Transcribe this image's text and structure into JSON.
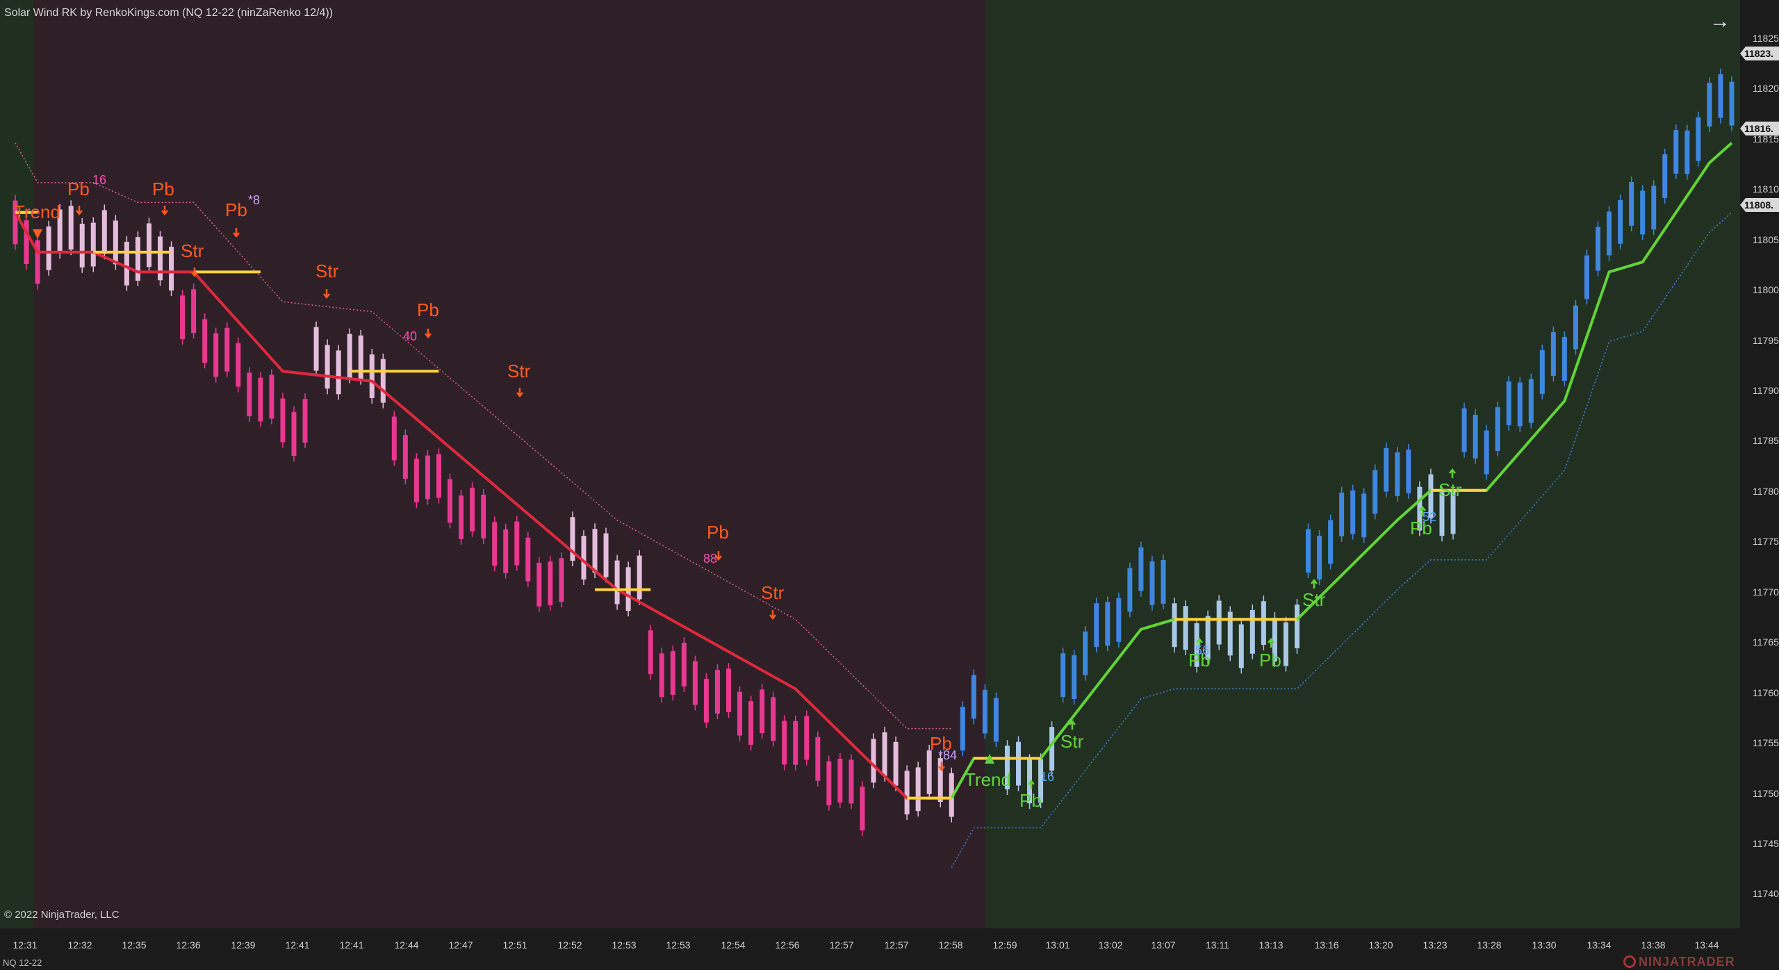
{
  "window": {
    "title": "Solar Wind RK by RenkoKings.com (NQ 12-22 (ninZaRenko 12/4))",
    "copyright": "© 2022 NinjaTrader, LLC",
    "instrument": "NQ 12-22",
    "brand": "NINJATRADER"
  },
  "icons": {
    "scroll": "arrow-right-icon",
    "brand": "ninjatrader-logo-icon"
  },
  "colors": {
    "bear_zone": "#2f2028",
    "bull_zone": "#223022",
    "bear_line": "#e0283c",
    "bull_line": "#62d438",
    "flat_line": "#ffd23a",
    "bear_bar": "#e8388f",
    "bear_pullback_bar": "#e3bddb",
    "bull_bar": "#3f86e0",
    "bull_pullback_bar": "#a9c9e6",
    "signal_bear": "#ff5a1f",
    "signal_bull": "#5fd33a"
  },
  "chart_data": {
    "type": "candlestick",
    "title": "",
    "y_axis": {
      "ticks": [
        "11825",
        "11820",
        "11815",
        "11810",
        "11805",
        "11800",
        "11795",
        "11790",
        "11785",
        "11780",
        "11775",
        "11770",
        "11765",
        "11760",
        "11755",
        "11750",
        "11745",
        "11740"
      ],
      "range": [
        11738,
        11829
      ]
    },
    "x_axis": {
      "ticks": [
        "12:31",
        "12:32",
        "12:35",
        "12:36",
        "12:39",
        "12:41",
        "12:41",
        "12:44",
        "12:47",
        "12:51",
        "12:52",
        "12:53",
        "12:53",
        "12:54",
        "12:56",
        "12:57",
        "12:57",
        "12:58",
        "12:59",
        "13:01",
        "13:02",
        "13:07",
        "13:11",
        "13:13",
        "13:16",
        "13:20",
        "13:23",
        "13:28",
        "13:30",
        "13:34",
        "13:38",
        "13:44"
      ]
    },
    "price_markers": [
      "11823.",
      "11816.",
      "11808."
    ],
    "bear_trail": [
      [
        0,
        11809
      ],
      [
        2,
        11805
      ],
      [
        7,
        11805
      ],
      [
        11,
        11803
      ],
      [
        16,
        11803
      ],
      [
        24,
        11793
      ],
      [
        32,
        11792
      ],
      [
        54,
        11771
      ],
      [
        70,
        11761
      ],
      [
        80,
        11750
      ],
      [
        84,
        11750
      ]
    ],
    "bull_trail": [
      [
        84,
        11750
      ],
      [
        86,
        11754
      ],
      [
        92,
        11754
      ],
      [
        101,
        11767
      ],
      [
        104,
        11768
      ],
      [
        115,
        11768
      ],
      [
        124,
        11778
      ],
      [
        127,
        11781
      ],
      [
        132,
        11781
      ],
      [
        139,
        11790
      ],
      [
        143,
        11803
      ],
      [
        146,
        11804
      ],
      [
        152,
        11814
      ],
      [
        154,
        11816
      ]
    ],
    "signals": [
      {
        "text": "Trend",
        "side": "bear"
      },
      {
        "text": "Pb",
        "side": "bear"
      },
      {
        "text": "Pb",
        "side": "bear"
      },
      {
        "text": "Pb",
        "side": "bear"
      },
      {
        "text": "Str",
        "side": "bear"
      },
      {
        "text": "Str",
        "side": "bear"
      },
      {
        "text": "Pb",
        "side": "bear"
      },
      {
        "text": "Str",
        "side": "bear"
      },
      {
        "text": "Pb",
        "side": "bear"
      },
      {
        "text": "Str",
        "side": "bear"
      },
      {
        "text": "Pb",
        "side": "bear"
      },
      {
        "text": "Trend",
        "side": "bull"
      },
      {
        "text": "Pb",
        "side": "bull"
      },
      {
        "text": "Str",
        "side": "bull"
      },
      {
        "text": "Pb",
        "side": "bull"
      },
      {
        "text": "Pb",
        "side": "bull"
      },
      {
        "text": "Str",
        "side": "bull"
      },
      {
        "text": "Pb",
        "side": "bull"
      },
      {
        "text": "Str",
        "side": "bull"
      }
    ],
    "counts": [
      "16",
      "*8",
      "40",
      "88",
      "*84",
      "16",
      "56",
      "52"
    ]
  }
}
